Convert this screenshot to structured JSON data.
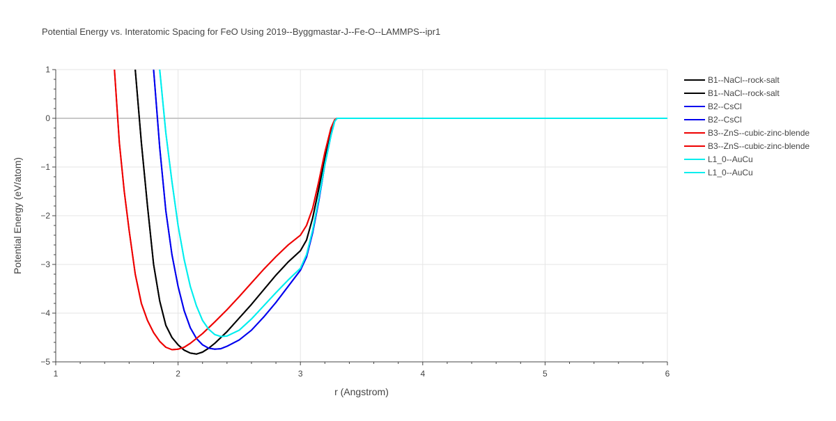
{
  "chart_data": {
    "type": "line",
    "title": "Potential Energy vs. Interatomic Spacing for FeO Using 2019--Byggmastar-J--Fe-O--LAMMPS--ipr1",
    "xlabel": "r (Angstrom)",
    "ylabel": "Potential Energy (eV/atom)",
    "xlim": [
      1,
      6
    ],
    "ylim": [
      -5,
      1
    ],
    "xticks": [
      1,
      2,
      3,
      4,
      5,
      6
    ],
    "yticks": [
      1,
      0,
      -1,
      -2,
      -3,
      -4,
      -5
    ],
    "xtick_labels": [
      "1",
      "2",
      "3",
      "4",
      "5",
      "6"
    ],
    "ytick_labels": [
      "1",
      "0",
      "−1",
      "−2",
      "−3",
      "−4",
      "−5"
    ],
    "grid": true,
    "legend_position": "top-right",
    "series": [
      {
        "name": "B1--NaCl--rock-salt",
        "color": "#000000",
        "x": [
          1.65,
          1.7,
          1.75,
          1.8,
          1.85,
          1.9,
          1.95,
          2.0,
          2.05,
          2.1,
          2.15,
          2.2,
          2.25,
          2.3,
          2.4,
          2.5,
          2.6,
          2.7,
          2.8,
          2.9,
          3.0,
          3.05,
          3.1,
          3.15,
          3.2,
          3.25,
          3.28,
          3.3,
          6.0
        ],
        "y": [
          1.0,
          -0.5,
          -1.8,
          -3.0,
          -3.75,
          -4.25,
          -4.5,
          -4.65,
          -4.76,
          -4.82,
          -4.84,
          -4.8,
          -4.72,
          -4.62,
          -4.38,
          -4.1,
          -3.82,
          -3.52,
          -3.22,
          -2.95,
          -2.72,
          -2.5,
          -2.05,
          -1.45,
          -0.8,
          -0.25,
          -0.04,
          0.0,
          0.0
        ]
      },
      {
        "name": "B1--NaCl--rock-salt",
        "color": "#000000",
        "x": [
          1.65,
          1.7,
          1.75,
          1.8,
          1.85,
          1.9,
          1.95,
          2.0,
          2.05,
          2.1,
          2.15,
          2.2,
          2.25,
          2.3,
          2.4,
          2.5,
          2.6,
          2.7,
          2.8,
          2.9,
          3.0,
          3.05,
          3.1,
          3.15,
          3.2,
          3.25,
          3.28,
          3.3,
          6.0
        ],
        "y": [
          1.0,
          -0.5,
          -1.8,
          -3.0,
          -3.75,
          -4.25,
          -4.5,
          -4.65,
          -4.76,
          -4.82,
          -4.84,
          -4.8,
          -4.72,
          -4.62,
          -4.38,
          -4.1,
          -3.82,
          -3.52,
          -3.22,
          -2.95,
          -2.72,
          -2.5,
          -2.05,
          -1.45,
          -0.8,
          -0.25,
          -0.04,
          0.0,
          0.0
        ]
      },
      {
        "name": "B2--CsCl",
        "color": "#0000ee",
        "x": [
          1.8,
          1.85,
          1.9,
          1.95,
          2.0,
          2.05,
          2.1,
          2.15,
          2.2,
          2.25,
          2.3,
          2.35,
          2.4,
          2.5,
          2.6,
          2.7,
          2.8,
          2.9,
          3.0,
          3.05,
          3.1,
          3.15,
          3.2,
          3.25,
          3.28,
          3.3,
          6.0
        ],
        "y": [
          1.0,
          -0.6,
          -1.9,
          -2.8,
          -3.45,
          -3.95,
          -4.3,
          -4.52,
          -4.65,
          -4.72,
          -4.74,
          -4.73,
          -4.68,
          -4.55,
          -4.35,
          -4.08,
          -3.78,
          -3.45,
          -3.12,
          -2.85,
          -2.35,
          -1.7,
          -0.95,
          -0.35,
          -0.06,
          0.0,
          0.0
        ]
      },
      {
        "name": "B2--CsCl",
        "color": "#0000ee",
        "x": [
          1.8,
          1.85,
          1.9,
          1.95,
          2.0,
          2.05,
          2.1,
          2.15,
          2.2,
          2.25,
          2.3,
          2.35,
          2.4,
          2.5,
          2.6,
          2.7,
          2.8,
          2.9,
          3.0,
          3.05,
          3.1,
          3.15,
          3.2,
          3.25,
          3.28,
          3.3,
          6.0
        ],
        "y": [
          1.0,
          -0.6,
          -1.9,
          -2.8,
          -3.45,
          -3.95,
          -4.3,
          -4.52,
          -4.65,
          -4.72,
          -4.74,
          -4.73,
          -4.68,
          -4.55,
          -4.35,
          -4.08,
          -3.78,
          -3.45,
          -3.12,
          -2.85,
          -2.35,
          -1.7,
          -0.95,
          -0.35,
          -0.06,
          0.0,
          0.0
        ]
      },
      {
        "name": "B3--ZnS--cubic-zinc-blende",
        "color": "#ee0000",
        "x": [
          1.48,
          1.52,
          1.56,
          1.6,
          1.65,
          1.7,
          1.75,
          1.8,
          1.85,
          1.9,
          1.95,
          2.0,
          2.05,
          2.1,
          2.15,
          2.2,
          2.3,
          2.4,
          2.5,
          2.6,
          2.7,
          2.8,
          2.9,
          3.0,
          3.05,
          3.1,
          3.15,
          3.2,
          3.25,
          3.28,
          3.3,
          6.0
        ],
        "y": [
          1.0,
          -0.5,
          -1.5,
          -2.3,
          -3.2,
          -3.8,
          -4.15,
          -4.4,
          -4.58,
          -4.7,
          -4.75,
          -4.74,
          -4.7,
          -4.62,
          -4.52,
          -4.42,
          -4.18,
          -3.93,
          -3.66,
          -3.38,
          -3.1,
          -2.84,
          -2.6,
          -2.4,
          -2.2,
          -1.85,
          -1.3,
          -0.7,
          -0.2,
          -0.03,
          0.0,
          0.0
        ]
      },
      {
        "name": "B3--ZnS--cubic-zinc-blende",
        "color": "#ee0000",
        "x": [
          1.48,
          1.52,
          1.56,
          1.6,
          1.65,
          1.7,
          1.75,
          1.8,
          1.85,
          1.9,
          1.95,
          2.0,
          2.05,
          2.1,
          2.15,
          2.2,
          2.3,
          2.4,
          2.5,
          2.6,
          2.7,
          2.8,
          2.9,
          3.0,
          3.05,
          3.1,
          3.15,
          3.2,
          3.25,
          3.28,
          3.3,
          6.0
        ],
        "y": [
          1.0,
          -0.5,
          -1.5,
          -2.3,
          -3.2,
          -3.8,
          -4.15,
          -4.4,
          -4.58,
          -4.7,
          -4.75,
          -4.74,
          -4.7,
          -4.62,
          -4.52,
          -4.42,
          -4.18,
          -3.93,
          -3.66,
          -3.38,
          -3.1,
          -2.84,
          -2.6,
          -2.4,
          -2.2,
          -1.85,
          -1.3,
          -0.7,
          -0.2,
          -0.03,
          0.0,
          0.0
        ]
      },
      {
        "name": "L1_0--AuCu",
        "color": "#00eeee",
        "x": [
          1.85,
          1.9,
          1.95,
          2.0,
          2.05,
          2.1,
          2.15,
          2.2,
          2.25,
          2.3,
          2.35,
          2.4,
          2.5,
          2.6,
          2.7,
          2.8,
          2.9,
          3.0,
          3.05,
          3.1,
          3.15,
          3.2,
          3.25,
          3.28,
          3.3,
          6.0
        ],
        "y": [
          1.0,
          -0.3,
          -1.3,
          -2.2,
          -2.9,
          -3.45,
          -3.85,
          -4.15,
          -4.33,
          -4.44,
          -4.48,
          -4.47,
          -4.35,
          -4.12,
          -3.85,
          -3.58,
          -3.32,
          -3.08,
          -2.8,
          -2.3,
          -1.65,
          -0.95,
          -0.35,
          -0.06,
          0.0,
          0.0
        ]
      },
      {
        "name": "L1_0--AuCu",
        "color": "#00eeee",
        "x": [
          1.85,
          1.9,
          1.95,
          2.0,
          2.05,
          2.1,
          2.15,
          2.2,
          2.25,
          2.3,
          2.35,
          2.4,
          2.5,
          2.6,
          2.7,
          2.8,
          2.9,
          3.0,
          3.05,
          3.1,
          3.15,
          3.2,
          3.25,
          3.28,
          3.3,
          6.0
        ],
        "y": [
          1.0,
          -0.3,
          -1.3,
          -2.2,
          -2.9,
          -3.45,
          -3.85,
          -4.15,
          -4.33,
          -4.44,
          -4.48,
          -4.47,
          -4.35,
          -4.12,
          -3.85,
          -3.58,
          -3.32,
          -3.08,
          -2.8,
          -2.3,
          -1.65,
          -0.95,
          -0.35,
          -0.06,
          0.0,
          0.0
        ]
      }
    ]
  }
}
